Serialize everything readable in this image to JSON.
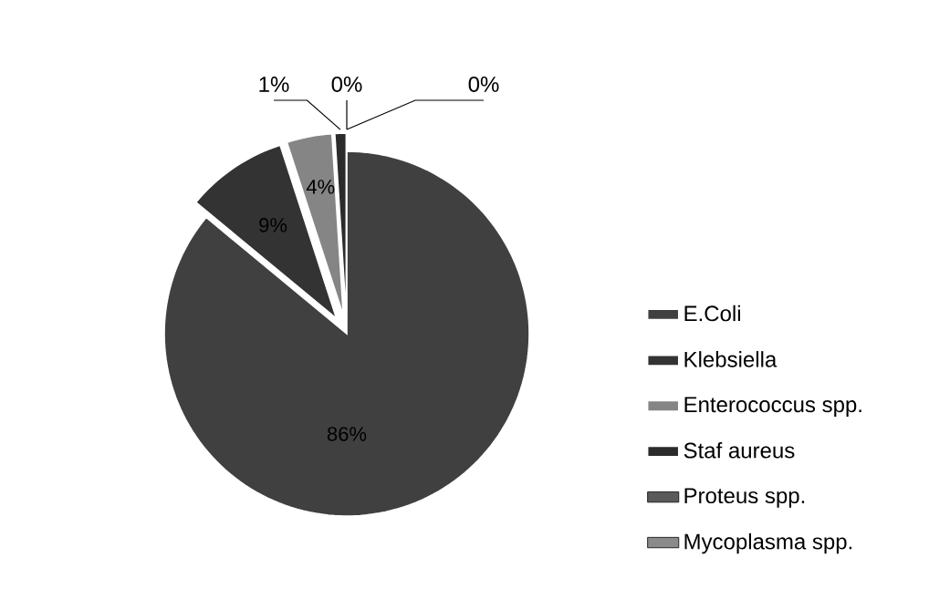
{
  "chart_data": {
    "type": "pie",
    "categories": [
      "E.Coli",
      "Klebsiella",
      "Enterococcus spp.",
      "Staf aureus",
      "Proteus spp.",
      "Mycoplasma spp."
    ],
    "values": [
      86,
      9,
      4,
      1,
      0,
      0
    ],
    "value_labels": [
      "86%",
      "9%",
      "4%",
      "1%",
      "0%",
      "0%"
    ],
    "colors": [
      "#404040",
      "#333333",
      "#858585",
      "#2b2b2b",
      "#5a5a5a",
      "#8a8a8a"
    ],
    "legend": "right"
  }
}
